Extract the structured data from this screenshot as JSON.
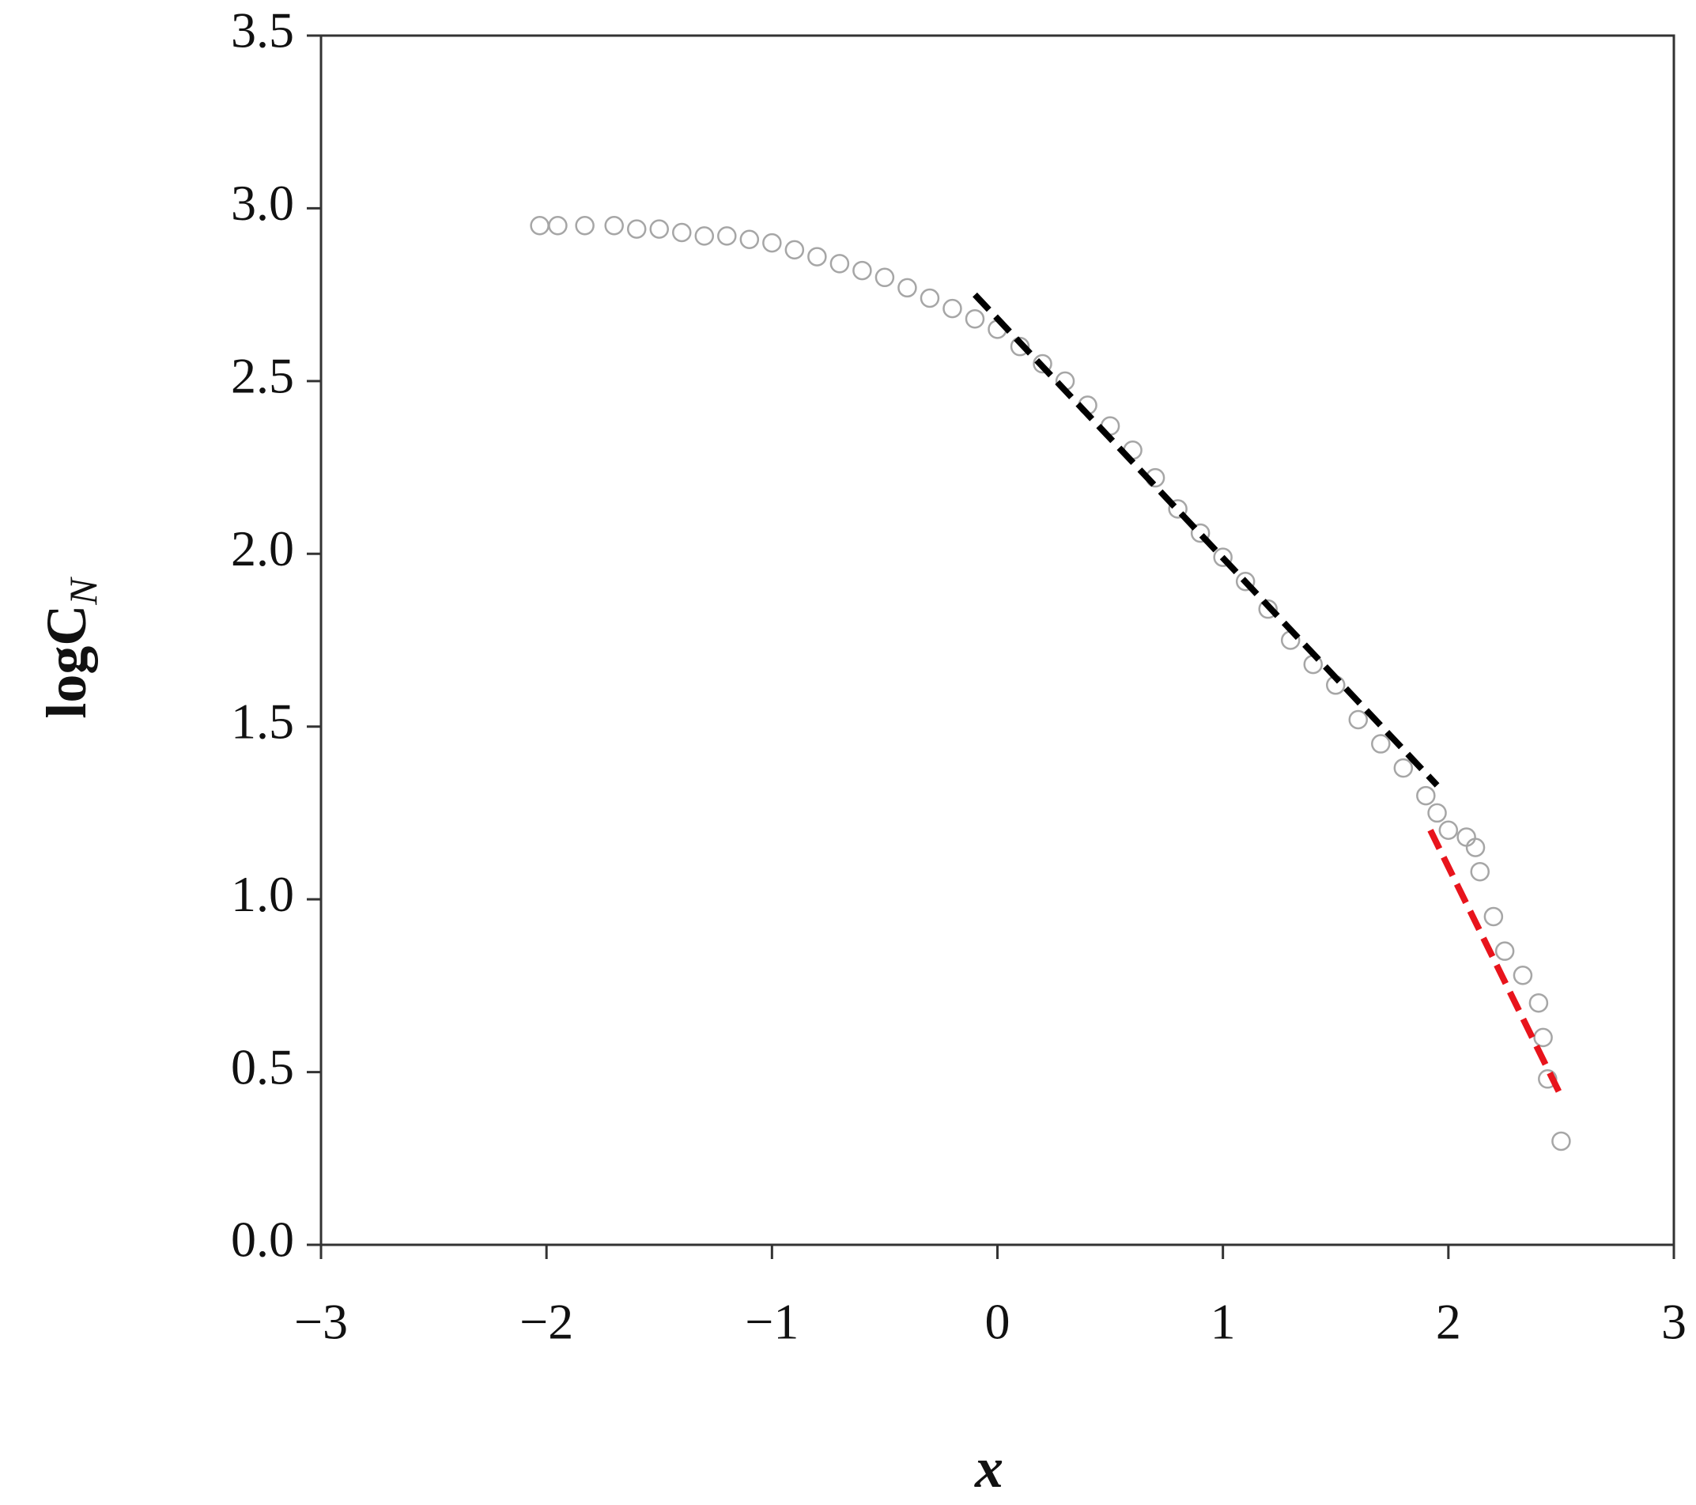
{
  "chart_data": {
    "type": "scatter",
    "x_label": "x",
    "y_label": "logC",
    "y_label_subscript": "N",
    "xlim": [
      -3,
      3
    ],
    "xticks": [
      {
        "value": -3,
        "label": "−3"
      },
      {
        "value": -2,
        "label": "−2"
      },
      {
        "value": -1,
        "label": "−1"
      },
      0,
      1,
      2,
      3
    ],
    "ylim": [
      0,
      3.5
    ],
    "yticks": [
      {
        "value": 0,
        "label": "0.0"
      },
      {
        "value": 0.5,
        "label": "0.5"
      },
      {
        "value": 1,
        "label": "1.0"
      },
      {
        "value": 1.5,
        "label": "1.5"
      },
      {
        "value": 2,
        "label": "2.0"
      },
      {
        "value": 2.5,
        "label": "2.5"
      },
      {
        "value": 3,
        "label": "3.0"
      },
      {
        "value": 3.5,
        "label": "3.5"
      }
    ],
    "series": [
      {
        "mode": "markers",
        "color": "#a6a6a6",
        "x": [
          -2.03,
          -1.95,
          -1.83,
          -1.7,
          -1.6,
          -1.5,
          -1.4,
          -1.3,
          -1.2,
          -1.1,
          -1.0,
          -0.9,
          -0.8,
          -0.7,
          -0.6,
          -0.5,
          -0.4,
          -0.3,
          -0.2,
          -0.1,
          0,
          0.1,
          0.2,
          0.3,
          0.4,
          0.5,
          0.6,
          0.7,
          0.8,
          0.9,
          1.0,
          1.1,
          1.2,
          1.3,
          1.4,
          1.5,
          1.6,
          1.7,
          1.8,
          1.9,
          1.95,
          2.0,
          2.08,
          2.12,
          2.14,
          2.2,
          2.25,
          2.33,
          2.4,
          2.42,
          2.44,
          2.5
        ],
        "values": [
          2.95,
          2.95,
          2.95,
          2.95,
          2.94,
          2.94,
          2.93,
          2.92,
          2.92,
          2.91,
          2.9,
          2.88,
          2.86,
          2.84,
          2.82,
          2.8,
          2.77,
          2.74,
          2.71,
          2.68,
          2.65,
          2.6,
          2.55,
          2.5,
          2.43,
          2.37,
          2.3,
          2.22,
          2.13,
          2.06,
          1.99,
          1.92,
          1.84,
          1.75,
          1.68,
          1.62,
          1.52,
          1.45,
          1.38,
          1.3,
          1.25,
          1.2,
          1.18,
          1.15,
          1.08,
          0.95,
          0.85,
          0.78,
          0.7,
          0.6,
          0.48,
          0.3
        ]
      },
      {
        "mode": "dashed-line",
        "color": "#000000",
        "x": [
          -0.1,
          1.95
        ],
        "values": [
          2.75,
          1.33
        ]
      },
      {
        "mode": "dashed-line",
        "color": "#e8141c",
        "x": [
          1.92,
          2.5
        ],
        "values": [
          1.2,
          0.43
        ]
      }
    ]
  }
}
